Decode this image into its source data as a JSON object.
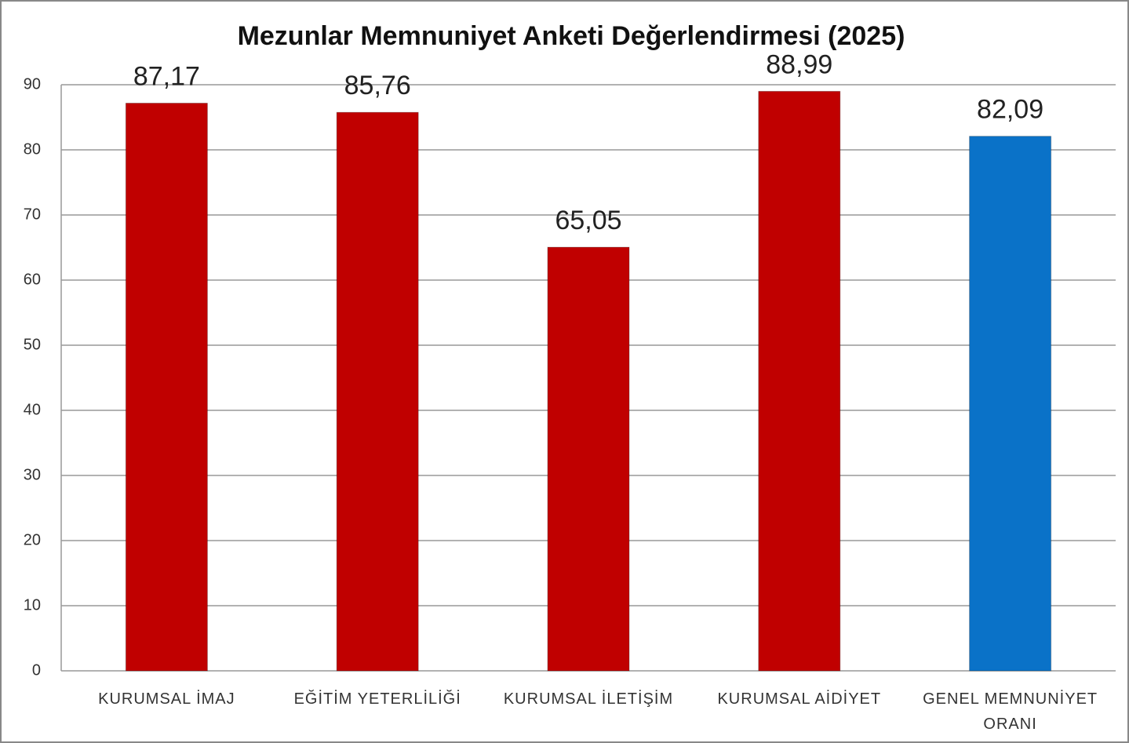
{
  "chart_data": {
    "type": "bar",
    "title": "Mezunlar Memnuniyet Anketi Değerlendirmesi (2025)",
    "categories": [
      "KURUMSAL İMAJ",
      "EĞİTİM YETERLİLİĞİ",
      "KURUMSAL İLETİŞİM",
      "KURUMSAL AİDİYET",
      "GENEL MEMNUNİYET ORANI"
    ],
    "values": [
      87.17,
      85.76,
      65.05,
      88.99,
      82.09
    ],
    "value_labels": [
      "87,17",
      "85,76",
      "65,05",
      "88,99",
      "82,09"
    ],
    "colors": [
      "#c00000",
      "#c00000",
      "#c00000",
      "#c00000",
      "#0a72c8"
    ],
    "ylim": [
      0,
      90
    ],
    "yticks": [
      0,
      10,
      20,
      30,
      40,
      50,
      60,
      70,
      80,
      90
    ],
    "grid": true
  }
}
